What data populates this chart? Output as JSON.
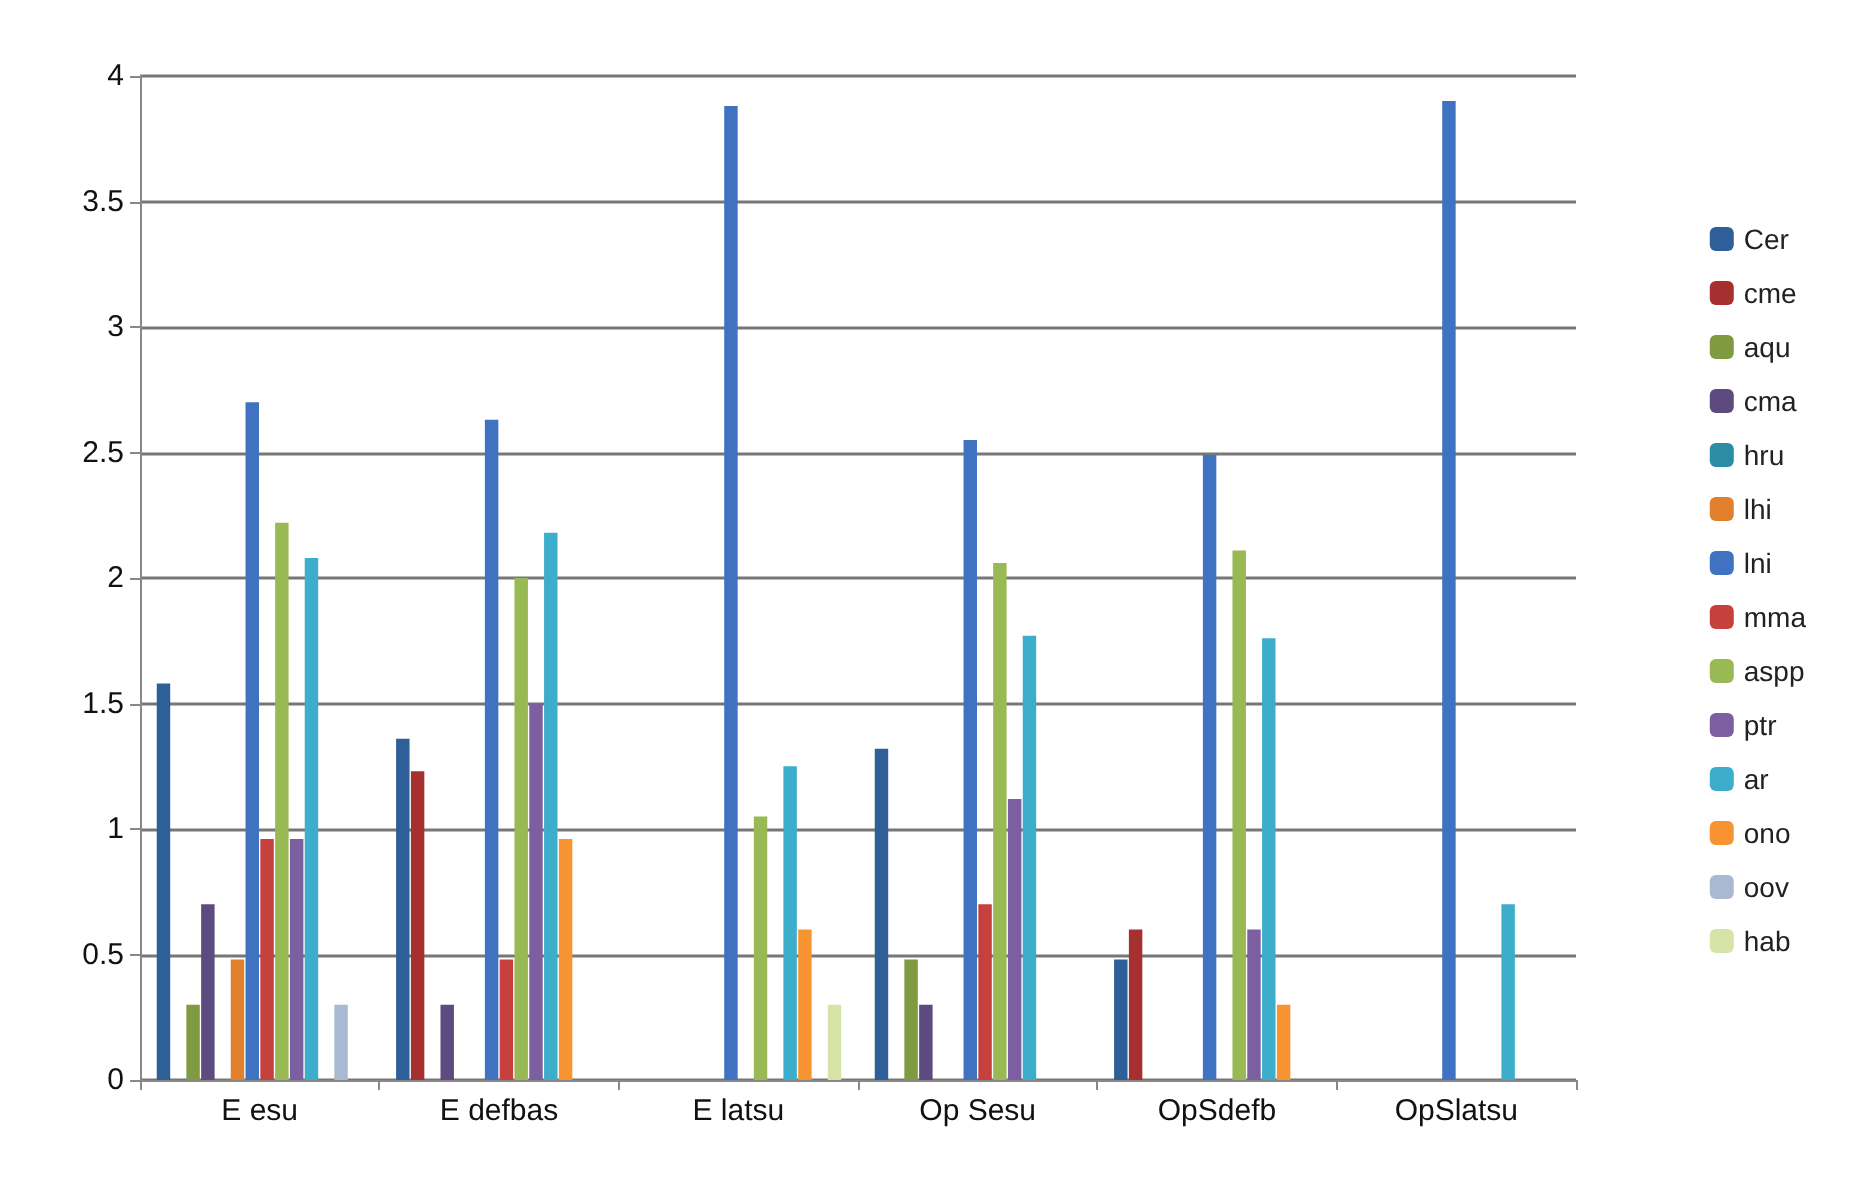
{
  "chart_data": {
    "type": "bar",
    "categories": [
      "E esu",
      "E defbas",
      "E latsu",
      "Op Sesu",
      "OpSdefb",
      "OpSlatsu"
    ],
    "series": [
      {
        "name": "Cer",
        "color": "#2f5f98",
        "values": [
          1.58,
          1.36,
          0,
          1.32,
          0.48,
          0
        ]
      },
      {
        "name": "cme",
        "color": "#a5302f",
        "values": [
          0,
          1.23,
          0,
          0,
          0.6,
          0
        ]
      },
      {
        "name": "aqu",
        "color": "#7f9a41",
        "values": [
          0.3,
          0,
          0,
          0.48,
          0,
          0
        ]
      },
      {
        "name": "cma",
        "color": "#5d4a7e",
        "values": [
          0.7,
          0.3,
          0,
          0.3,
          0,
          0
        ]
      },
      {
        "name": "hru",
        "color": "#2c8ca3",
        "values": [
          0,
          0,
          0,
          0,
          0,
          0
        ]
      },
      {
        "name": "lhi",
        "color": "#e07f2c",
        "values": [
          0.48,
          0,
          0,
          0,
          0,
          0
        ]
      },
      {
        "name": "lni",
        "color": "#3f73c2",
        "values": [
          2.7,
          2.63,
          3.88,
          2.55,
          2.49,
          3.9
        ]
      },
      {
        "name": "mma",
        "color": "#c6403d",
        "values": [
          0.96,
          0.48,
          0,
          0.7,
          0,
          0
        ]
      },
      {
        "name": "aspp",
        "color": "#98b954",
        "values": [
          2.22,
          2.0,
          1.05,
          2.06,
          2.11,
          0
        ]
      },
      {
        "name": "ptr",
        "color": "#7c5fa0",
        "values": [
          0.96,
          1.5,
          0,
          1.12,
          0.6,
          0
        ]
      },
      {
        "name": "ar",
        "color": "#3caecc",
        "values": [
          2.08,
          2.18,
          1.25,
          1.77,
          1.76,
          0.7
        ]
      },
      {
        "name": "ono",
        "color": "#f79431",
        "values": [
          0,
          0.96,
          0.6,
          0,
          0.3,
          0
        ]
      },
      {
        "name": "oov",
        "color": "#a9b9d2",
        "values": [
          0.3,
          0,
          0,
          0,
          0,
          0
        ]
      },
      {
        "name": "hab",
        "color": "#d6e4a8",
        "values": [
          0,
          0,
          0.3,
          0,
          0,
          0
        ]
      }
    ],
    "ylim": [
      0,
      4
    ],
    "yticks": [
      0,
      0.5,
      1,
      1.5,
      2,
      2.5,
      3,
      3.5,
      4
    ],
    "grid": "y",
    "legend": "right"
  }
}
